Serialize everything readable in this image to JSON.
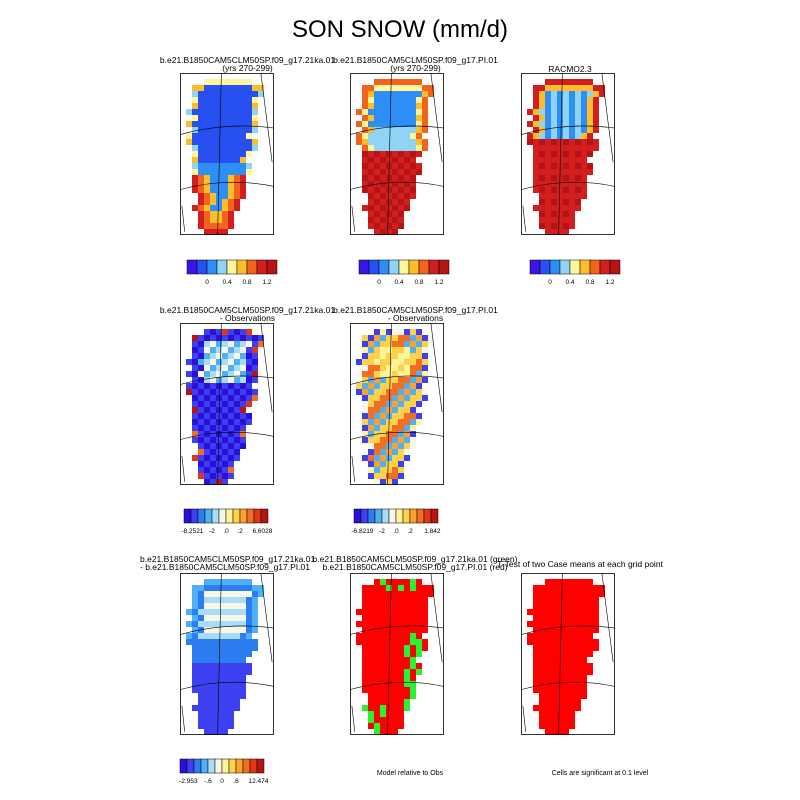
{
  "page_title": "SON SNOW (mm/d)",
  "colors": {
    "scale": [
      "#3b14e6",
      "#2850f0",
      "#2d8ef5",
      "#8fd3f5",
      "#fff59a",
      "#fcbd2b",
      "#f0641e",
      "#d21e1e",
      "#b41414"
    ],
    "diff_scale": [
      "#2a10d8",
      "#3d40f0",
      "#2c7df0",
      "#4fb0f5",
      "#a8dcf7",
      "#f7f7e8",
      "#fff39a",
      "#fdd24a",
      "#fba22e",
      "#f26e20",
      "#e0361a",
      "#b81414"
    ],
    "land_green": "#29f22e",
    "sig_red": "#ff0000"
  },
  "panels": [
    {
      "title_line1": "b.e21.B1850CAM5CLM50SP.f09_g17.21ka.01",
      "title_line2": "(yrs 270-299)"
    },
    {
      "title_line1": "b.e21.B1850CAM5CLM50SP.f09_g17.PI.01",
      "title_line2": "(yrs 270-299)"
    },
    {
      "title_line1": "RACMO2.3",
      "title_line2": ""
    },
    {
      "title_line1": "b.e21.B1850CAM5CLM50SP.f09_g17.21ka.01",
      "title_line2": "- Observations"
    },
    {
      "title_line1": "b.e21.B1850CAM5CLM50SP.f09_g17.PI.01",
      "title_line2": "- Observations"
    },
    {
      "title_line1": "b.e21.B1850CAM5CLM50SP.f09_g17.21ka.01",
      "title_line2": "- b.e21.B1850CAM5CLM50SP.f09_g17.PI.01"
    },
    {
      "title_line1": "b.e21.B1850CAM5CLM50SP.f09_g17.21ka.01 (green)",
      "title_line2": "b.e21.B1850CAM5CLM50SP.f09_g17.PI.01 (red)"
    },
    {
      "title_line1": "T-Test of two Case means at each grid point",
      "title_line2": ""
    }
  ],
  "colorbars": [
    {
      "ticks": [
        "0",
        "0.4",
        "0.8",
        "1.2"
      ]
    },
    {
      "ticks": [
        "0",
        "0.4",
        "0.8",
        "1.2"
      ]
    },
    {
      "ticks": [
        "0",
        "0.4",
        "0.8",
        "1.2"
      ]
    },
    {
      "ticks": [
        "-8.2521",
        "-2",
        ".0",
        ".2",
        "6.6028"
      ]
    },
    {
      "ticks": [
        "-6.8219",
        "-2",
        ".0",
        ".2",
        "1.842"
      ]
    },
    {
      "ticks": [
        "-2.953",
        "-.6",
        "0",
        ".6",
        "12.474"
      ]
    }
  ],
  "notes": {
    "model_relative": "Model relative to Obs",
    "significance": "Cells are significant at 0.1 level"
  },
  "chart_data": [
    {
      "type": "heatmap",
      "title": "b.e21.B1850CAM5CLM50SP.f09_g17.21ka.01 (yrs 270-299)",
      "colorbar_ticks": [
        0,
        0.4,
        0.8,
        1.2
      ]
    },
    {
      "type": "heatmap",
      "title": "b.e21.B1850CAM5CLM50SP.f09_g17.PI.01 (yrs 270-299)",
      "colorbar_ticks": [
        0,
        0.4,
        0.8,
        1.2
      ]
    },
    {
      "type": "heatmap",
      "title": "RACMO2.3",
      "colorbar_ticks": [
        0,
        0.4,
        0.8,
        1.2
      ]
    },
    {
      "type": "heatmap",
      "title": "b.e21.B1850CAM5CLM50SP.f09_g17.21ka.01 - Observations",
      "colorbar_ticks": [
        -8.2521,
        -2,
        0.0,
        0.2,
        6.6028
      ]
    },
    {
      "type": "heatmap",
      "title": "b.e21.B1850CAM5CLM50SP.f09_g17.PI.01 - Observations",
      "colorbar_ticks": [
        -6.8219,
        -2,
        0.0,
        0.2,
        1.842
      ]
    },
    {
      "type": "heatmap",
      "title": "b.e21.B1850CAM5CLM50SP.f09_g17.21ka.01 - b.e21.B1850CAM5CLM50SP.f09_g17.PI.01",
      "colorbar_ticks": [
        -2.953,
        -0.6,
        0,
        0.6,
        12.474
      ]
    },
    {
      "type": "heatmap",
      "title": "b.e21.B1850CAM5CLM50SP.f09_g17.21ka.01 (green) b.e21.B1850CAM5CLM50SP.f09_g17.PI.01 (red)"
    },
    {
      "type": "heatmap",
      "title": "T-Test of two Case means at each grid point"
    }
  ]
}
